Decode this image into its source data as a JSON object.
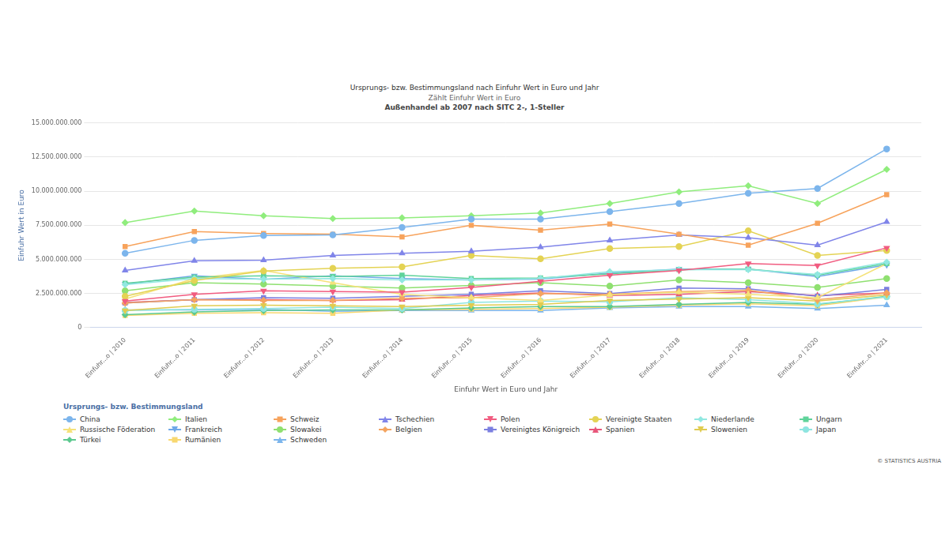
{
  "chart_data": {
    "type": "line",
    "title": "Ursprungs- bzw. Bestimmungsland nach Einfuhr Wert in Euro und Jahr",
    "subtitle": [
      "Zählt Einfuhr Wert in Euro",
      "Außenhandel ab 2007 nach SITC 2-, 1-Steller"
    ],
    "x_label": "Einfuhr Wert in Euro und Jahr",
    "y_label": "Einfuhr Wert in Euro",
    "legend_title": "Ursprungs- bzw. Bestimmungsland",
    "annotations": [
      "© STATISTICS AUSTRIA"
    ],
    "categories": [
      "Einfuhr...o | 2010",
      "Einfuhr...o | 2011",
      "Einfuhr...o | 2012",
      "Einfuhr...o | 2013",
      "Einfuhr...o | 2014",
      "Einfuhr...o | 2015",
      "Einfuhr...o | 2016",
      "Einfuhr...o | 2017",
      "Einfuhr...o | 2018",
      "Einfuhr...o | 2019",
      "Einfuhr...o | 2020",
      "Einfuhr...o | 2021"
    ],
    "ylim": [
      0,
      15000000000
    ],
    "yticks": [
      0,
      {
        "value": 2500000000,
        "label": "2.500.000.000"
      },
      {
        "value": 5000000000,
        "label": "5.000.000.000"
      },
      {
        "value": 7500000000,
        "label": "7.500.000.000"
      },
      {
        "value": 10000000000,
        "label": "10.000.000.000"
      },
      {
        "value": 12500000000,
        "label": "12.500.000.000"
      },
      {
        "value": 15000000000,
        "label": "15.000.000.000"
      }
    ],
    "grid": true,
    "legend": "bottom",
    "series": [
      {
        "name": "China",
        "color": "#7cb5ec",
        "marker": "circle",
        "values": [
          5450000000,
          6400000000,
          6750000000,
          6800000000,
          7350000000,
          7950000000,
          7950000000,
          8500000000,
          9100000000,
          9850000000,
          10200000000,
          13100000000
        ]
      },
      {
        "name": "Italien",
        "color": "#90ed7d",
        "marker": "diamond",
        "values": [
          7700000000,
          8550000000,
          8200000000,
          8000000000,
          8050000000,
          8200000000,
          8400000000,
          9100000000,
          9950000000,
          10400000000,
          9100000000,
          11600000000
        ]
      },
      {
        "name": "Schweiz",
        "color": "#f7a35c",
        "marker": "square",
        "values": [
          5950000000,
          7050000000,
          6900000000,
          6850000000,
          6650000000,
          7500000000,
          7150000000,
          7600000000,
          6850000000,
          6050000000,
          7650000000,
          9750000000
        ]
      },
      {
        "name": "Tschechien",
        "color": "#8085e9",
        "marker": "triangle",
        "values": [
          4200000000,
          4900000000,
          4950000000,
          5300000000,
          5450000000,
          5600000000,
          5900000000,
          6400000000,
          6800000000,
          6600000000,
          6050000000,
          7750000000
        ]
      },
      {
        "name": "Polen",
        "color": "#f15c80",
        "marker": "triangle-down",
        "values": [
          1950000000,
          2450000000,
          2700000000,
          2650000000,
          2600000000,
          2950000000,
          3400000000,
          3850000000,
          4200000000,
          4700000000,
          4550000000,
          5850000000
        ]
      },
      {
        "name": "Vereinigte Staaten",
        "color": "#e4d354",
        "marker": "circle",
        "values": [
          2300000000,
          3450000000,
          4150000000,
          4350000000,
          4450000000,
          5300000000,
          5050000000,
          5800000000,
          5950000000,
          7100000000,
          5300000000,
          5650000000
        ]
      },
      {
        "name": "Niederlande",
        "color": "#91e8e1",
        "marker": "diamond",
        "values": [
          3150000000,
          3600000000,
          3550000000,
          3600000000,
          3500000000,
          3500000000,
          3600000000,
          4100000000,
          4250000000,
          4250000000,
          3900000000,
          4800000000
        ]
      },
      {
        "name": "Ungarn",
        "color": "#5fd39a",
        "marker": "square",
        "values": [
          3250000000,
          3700000000,
          3800000000,
          3750000000,
          3850000000,
          3600000000,
          3650000000,
          3950000000,
          4250000000,
          4300000000,
          3850000000,
          4700000000
        ]
      },
      {
        "name": "Russische Föderation",
        "color": "#f5e27a",
        "marker": "triangle",
        "values": [
          2100000000,
          3600000000,
          4200000000,
          3300000000,
          2450000000,
          2200000000,
          2000000000,
          2400000000,
          2600000000,
          2450000000,
          2200000000,
          4700000000
        ]
      },
      {
        "name": "Frankreich",
        "color": "#6fa8e8",
        "marker": "triangle-down",
        "values": [
          3200000000,
          3800000000,
          3550000000,
          3800000000,
          3600000000,
          3500000000,
          3550000000,
          4000000000,
          4300000000,
          4300000000,
          3750000000,
          4600000000
        ]
      },
      {
        "name": "Slowakei",
        "color": "#8fe070",
        "marker": "circle",
        "values": [
          2700000000,
          3300000000,
          3200000000,
          3050000000,
          2900000000,
          3100000000,
          3300000000,
          3050000000,
          3500000000,
          3300000000,
          2950000000,
          3600000000
        ]
      },
      {
        "name": "Belgien",
        "color": "#f4a460",
        "marker": "diamond",
        "values": [
          1800000000,
          2050000000,
          2000000000,
          2000000000,
          2150000000,
          2200000000,
          2500000000,
          2450000000,
          2650000000,
          2750000000,
          2050000000,
          2550000000
        ]
      },
      {
        "name": "Vereinigtes Königreich",
        "color": "#7b7fe0",
        "marker": "square",
        "values": [
          1800000000,
          2050000000,
          2200000000,
          2150000000,
          2300000000,
          2450000000,
          2700000000,
          2500000000,
          2900000000,
          2850000000,
          2300000000,
          2800000000
        ]
      },
      {
        "name": "Spanien",
        "color": "#e8567a",
        "marker": "triangle",
        "values": [
          1850000000,
          2050000000,
          2050000000,
          2000000000,
          2050000000,
          2350000000,
          2550000000,
          2350000000,
          2450000000,
          2650000000,
          2350000000,
          2550000000
        ]
      },
      {
        "name": "Slowenien",
        "color": "#e0cc50",
        "marker": "triangle-down",
        "values": [
          1250000000,
          1600000000,
          1650000000,
          1600000000,
          1550000000,
          1650000000,
          1700000000,
          2000000000,
          2100000000,
          2200000000,
          1950000000,
          2400000000
        ]
      },
      {
        "name": "Japan",
        "color": "#8ee5e0",
        "marker": "circle",
        "values": [
          1250000000,
          1350000000,
          1400000000,
          1500000000,
          1400000000,
          1850000000,
          1950000000,
          1900000000,
          2200000000,
          2050000000,
          1750000000,
          2250000000
        ]
      },
      {
        "name": "Türkei",
        "color": "#5cc98f",
        "marker": "diamond",
        "values": [
          950000000,
          1150000000,
          1250000000,
          1300000000,
          1300000000,
          1450000000,
          1550000000,
          1550000000,
          1700000000,
          1850000000,
          1700000000,
          2300000000
        ]
      },
      {
        "name": "Rumänien",
        "color": "#f8d870",
        "marker": "square",
        "values": [
          900000000,
          1050000000,
          1100000000,
          1050000000,
          1300000000,
          1350000000,
          1400000000,
          1500000000,
          1650000000,
          1750000000,
          1600000000,
          2250000000
        ]
      },
      {
        "name": "Schweden",
        "color": "#7cb5ec",
        "marker": "triangle",
        "values": [
          1300000000,
          1300000000,
          1350000000,
          1200000000,
          1250000000,
          1250000000,
          1250000000,
          1450000000,
          1550000000,
          1550000000,
          1400000000,
          1650000000
        ]
      }
    ]
  }
}
